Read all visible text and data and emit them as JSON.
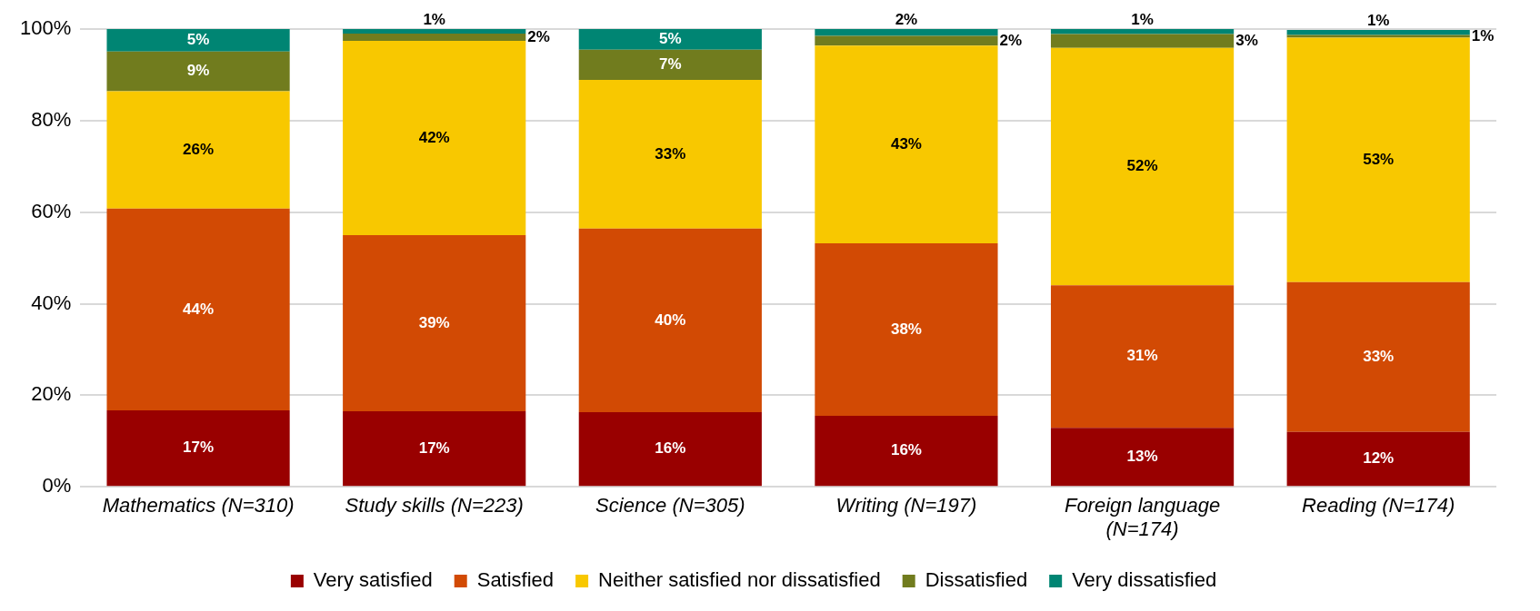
{
  "chart_data": {
    "type": "bar",
    "stacked": true,
    "categories": [
      "Mathematics (N=310)",
      "Study skills (N=223)",
      "Science (N=305)",
      "Writing (N=197)",
      "Foreign language (N=174)",
      "Reading (N=174)"
    ],
    "series": [
      {
        "name": "Very satisfied",
        "color": "#990000",
        "values": [
          16.7,
          16.5,
          16.3,
          15.5,
          12.9,
          12.0
        ],
        "value_labels": [
          "17%",
          "17%",
          "16%",
          "16%",
          "13%",
          "12%"
        ]
      },
      {
        "name": "Satisfied",
        "color": "#d24a04",
        "values": [
          44.1,
          38.5,
          40.1,
          37.7,
          31.1,
          32.7
        ],
        "value_labels": [
          "44%",
          "39%",
          "40%",
          "38%",
          "31%",
          "33%"
        ]
      },
      {
        "name": "Neither satisfied nor dissatisfied",
        "color": "#f8c800",
        "values": [
          25.6,
          42.4,
          32.5,
          43.2,
          51.9,
          53.4
        ],
        "value_labels": [
          "26%",
          "42%",
          "33%",
          "43%",
          "52%",
          "53%"
        ]
      },
      {
        "name": "Dissatisfied",
        "color": "#717c1e",
        "values": [
          8.7,
          1.6,
          6.6,
          2.1,
          3.0,
          0.6
        ],
        "value_labels": [
          "9%",
          "2%",
          "7%",
          "2%",
          "3%",
          "1%"
        ]
      },
      {
        "name": "Very dissatisfied",
        "color": "#008573",
        "values": [
          4.9,
          1.0,
          4.5,
          1.5,
          1.1,
          1.1
        ],
        "value_labels": [
          "5%",
          "1%",
          "5%",
          "2%",
          "1%",
          "1%"
        ]
      }
    ],
    "ylim": [
      0,
      100
    ],
    "yticks": [
      {
        "value": 0,
        "label": "0%"
      },
      {
        "value": 20,
        "label": "20%"
      },
      {
        "value": 40,
        "label": "40%"
      },
      {
        "value": 60,
        "label": "60%"
      },
      {
        "value": 80,
        "label": "80%"
      },
      {
        "value": 100,
        "label": "100%"
      }
    ],
    "grid": "y",
    "legend": "bottom"
  }
}
